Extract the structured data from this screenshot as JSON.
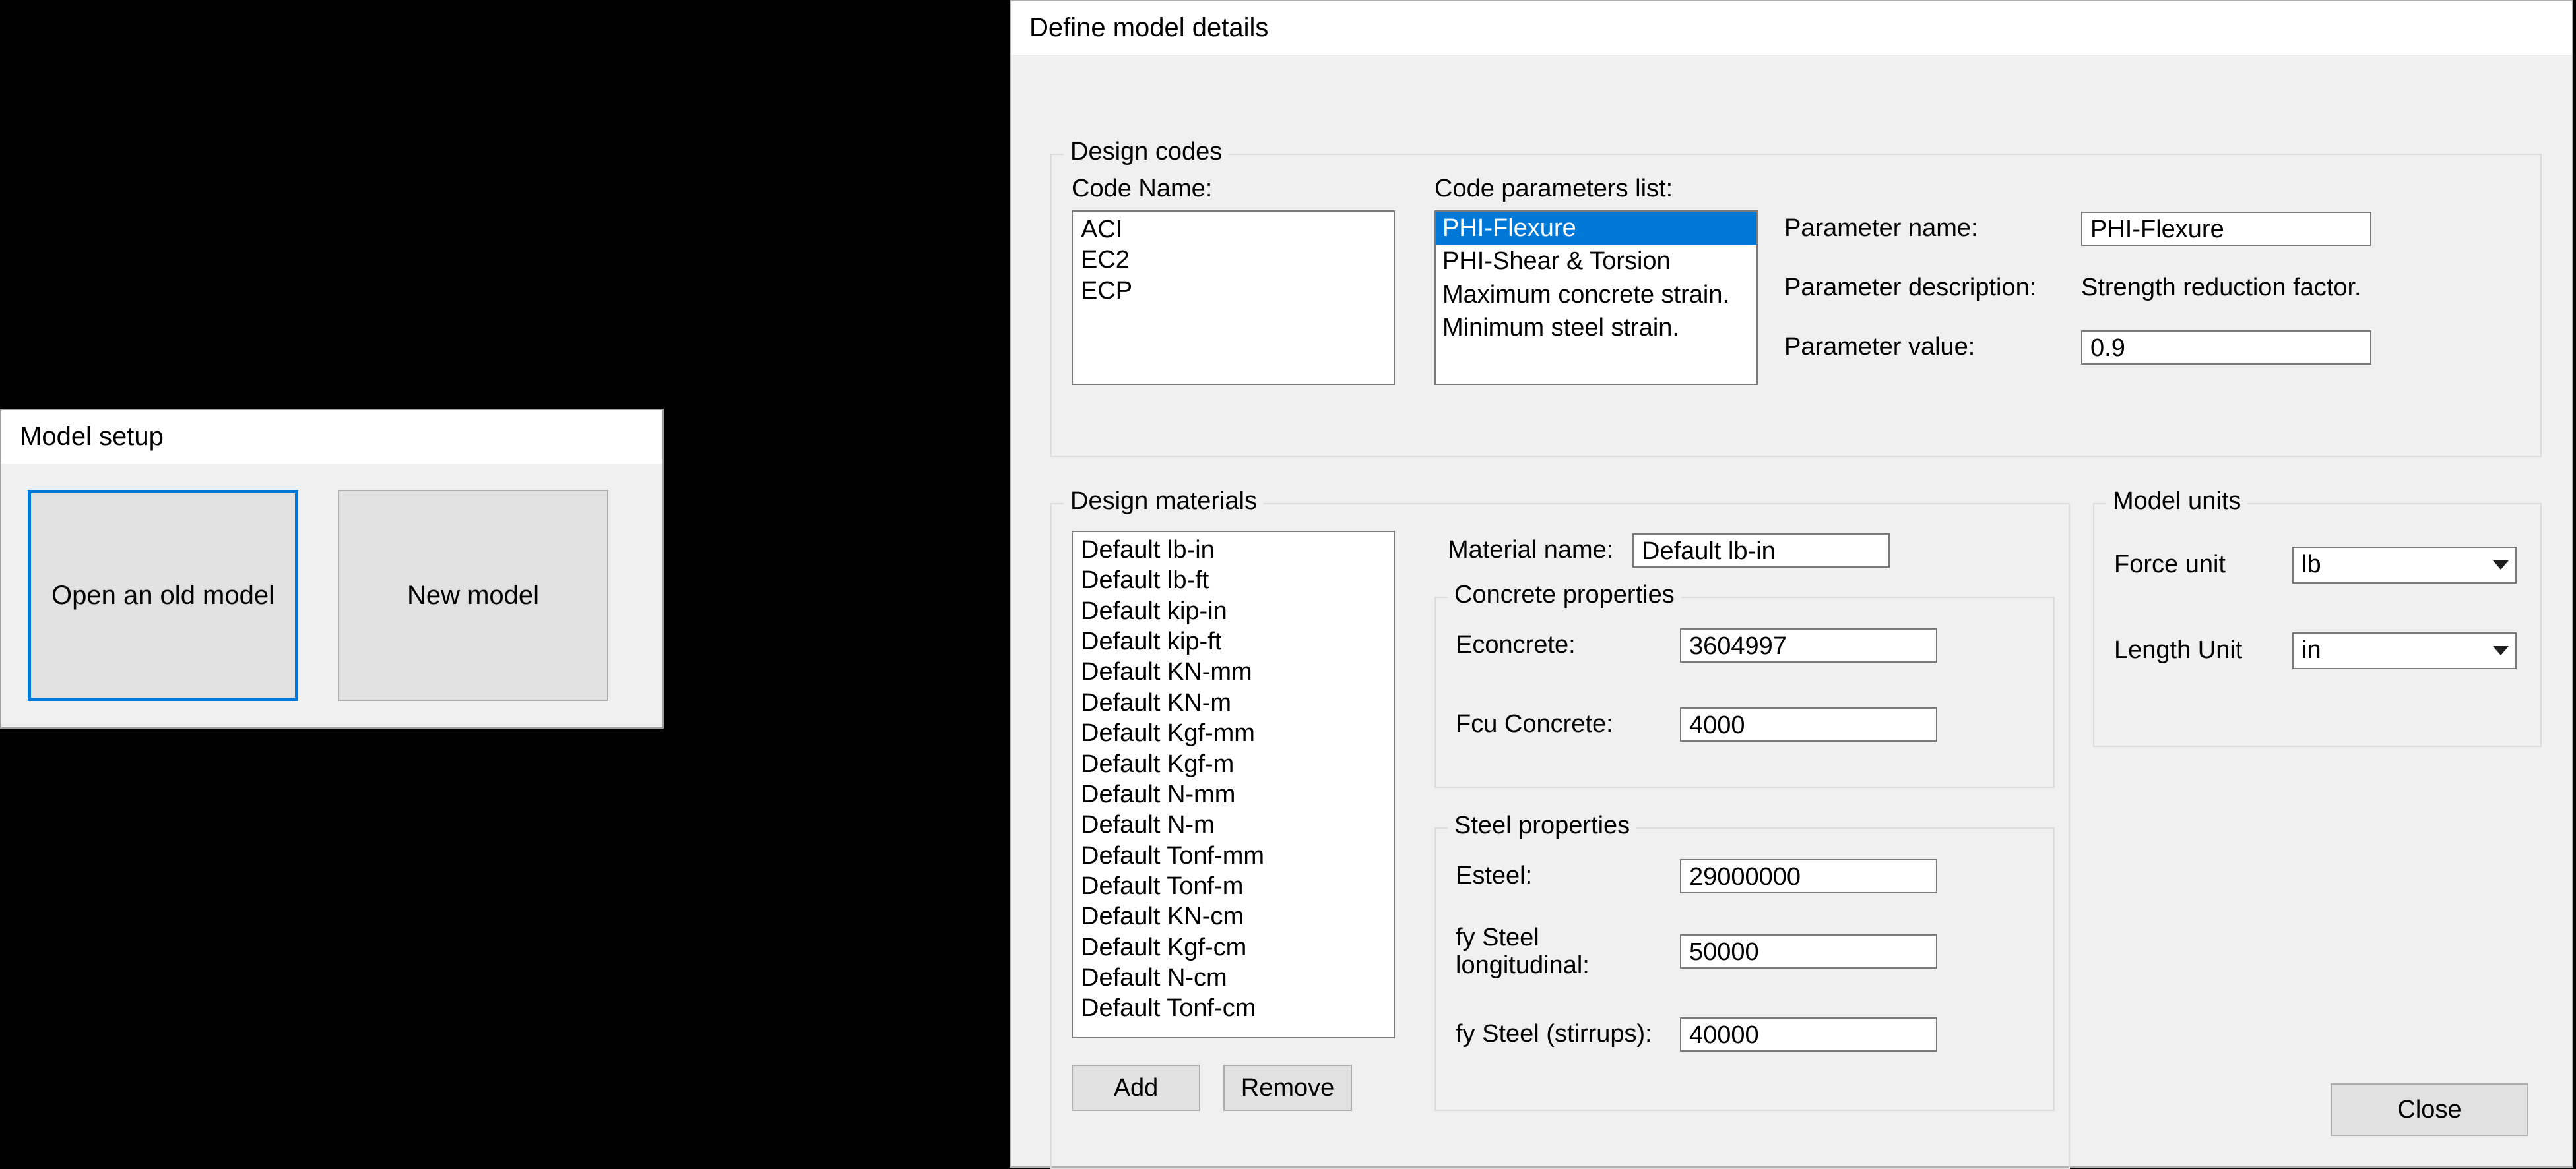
{
  "model_setup": {
    "title": "Model setup",
    "open_old_label": "Open an old model",
    "new_model_label": "New model"
  },
  "define": {
    "title": "Define model details",
    "codes": {
      "legend": "Design codes",
      "code_name_label": "Code Name:",
      "code_names": [
        "ACI",
        "EC2",
        "ECP"
      ],
      "params_label": "Code parameters list:",
      "params": [
        {
          "label": "PHI-Flexure",
          "selected": true
        },
        {
          "label": "PHI-Shear & Torsion",
          "selected": false
        },
        {
          "label": "Maximum concrete strain.",
          "selected": false
        },
        {
          "label": "Minimum steel strain.",
          "selected": false
        }
      ],
      "param_name_label": "Parameter name:",
      "param_name_value": "PHI-Flexure",
      "param_desc_label": "Parameter description:",
      "param_desc_value": "Strength reduction factor.",
      "param_value_label": "Parameter value:",
      "param_value_value": "0.9"
    },
    "materials": {
      "legend": "Design materials",
      "items": [
        "Default lb-in",
        "Default lb-ft",
        "Default kip-in",
        "Default kip-ft",
        "Default KN-mm",
        "Default KN-m",
        "Default Kgf-mm",
        "Default Kgf-m",
        "Default N-mm",
        "Default N-m",
        "Default Tonf-mm",
        "Default Tonf-m",
        "Default KN-cm",
        "Default Kgf-cm",
        "Default N-cm",
        "Default Tonf-cm"
      ],
      "material_name_label": "Material name:",
      "material_name_value": "Default lb-in",
      "concrete_legend": "Concrete properties",
      "econcrete_label": "Econcrete:",
      "econcrete_value": "3604997",
      "fcu_label": "Fcu Concrete:",
      "fcu_value": "4000",
      "steel_legend": "Steel properties",
      "esteel_label": "Esteel:",
      "esteel_value": "29000000",
      "fy_long_label": "fy Steel longitudinal:",
      "fy_long_value": "50000",
      "fy_stirrups_label": "fy Steel (stirrups):",
      "fy_stirrups_value": "40000",
      "add_label": "Add",
      "remove_label": "Remove"
    },
    "units": {
      "legend": "Model units",
      "force_label": "Force unit",
      "force_value": "lb",
      "length_label": "Length Unit",
      "length_value": "in"
    },
    "close_label": "Close"
  },
  "colors": {
    "selection": "#0078d7",
    "dialog_bg": "#f0f0f0",
    "field_bg": "#ffffff",
    "border": "#7a7a7a",
    "group_border": "#dcdcdc",
    "button_bg": "#e1e1e1",
    "button_border": "#adadad"
  }
}
